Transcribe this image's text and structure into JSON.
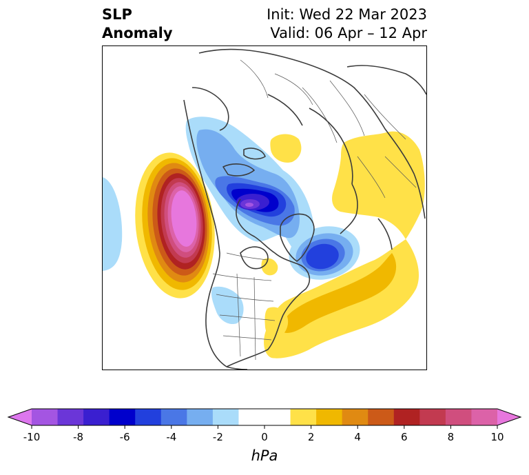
{
  "header": {
    "variable_line1": "SLP",
    "variable_line2": "Anomaly",
    "init_text": "Init: Wed 22 Mar 2023",
    "valid_text": "Valid: 06 Apr – 12 Apr"
  },
  "colorbar": {
    "unit": "hPa",
    "tick_labels": [
      "-10",
      "-8",
      "-6",
      "-4",
      "-2",
      "0",
      "2",
      "4",
      "6",
      "8",
      "10"
    ],
    "min": -10,
    "max": 10,
    "extend": "both",
    "colors": [
      "#dd77ee",
      "#a455e2",
      "#6b36d8",
      "#3a1fd0",
      "#0000cc",
      "#2240dd",
      "#4a77e6",
      "#76aef0",
      "#aadcfa",
      "#ffffff",
      "#ffffff",
      "#ffe148",
      "#f0b800",
      "#e08a12",
      "#cc5a18",
      "#b02222",
      "#c23a50",
      "#d04e7e",
      "#dc62a8",
      "#e777dd"
    ]
  }
}
